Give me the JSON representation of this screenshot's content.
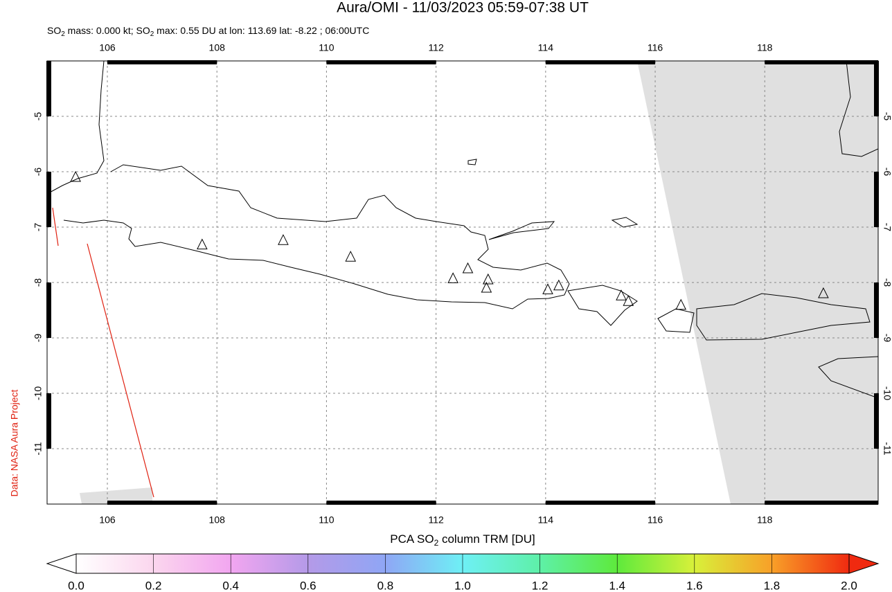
{
  "title": "Aura/OMI - 11/03/2023 05:59-07:38 UT",
  "subtitle": [
    "SO",
    "2",
    " mass: 0.000 kt; SO",
    "2",
    " max: 0.55 DU at lon: 113.69 lat: -8.22 ; 06:00UTC"
  ],
  "credit": "Data: NASA Aura Project",
  "map": {
    "xlim": [
      104.9,
      120.07
    ],
    "ylim": [
      -12,
      -4
    ],
    "xticks": [
      106,
      108,
      110,
      112,
      114,
      116,
      118
    ],
    "yticks": [
      -5,
      -6,
      -7,
      -8,
      -9,
      -10,
      -11
    ],
    "grid": true,
    "volcanoes": {
      "lon": [
        105.42,
        107.73,
        109.21,
        110.44,
        112.31,
        112.58,
        112.95,
        112.92,
        114.04,
        114.24,
        115.38,
        115.51,
        116.47,
        119.07
      ],
      "lat": [
        -6.1,
        -7.32,
        -7.24,
        -7.54,
        -7.93,
        -7.75,
        -7.95,
        -8.1,
        -8.13,
        -8.06,
        -8.24,
        -8.34,
        -8.41,
        -8.2
      ]
    }
  },
  "colorbar": {
    "label": [
      "PCA SO",
      "2",
      " column TRM [DU]"
    ],
    "lim": [
      0,
      2
    ],
    "ticks": [
      {
        "value": 0,
        "label": "0.0"
      },
      {
        "value": 0.2,
        "label": "0.2"
      },
      {
        "value": 0.4,
        "label": "0.4"
      },
      {
        "value": 0.6,
        "label": "0.6"
      },
      {
        "value": 0.8,
        "label": "0.8"
      },
      {
        "value": 1,
        "label": "1.0"
      },
      {
        "value": 1.2,
        "label": "1.2"
      },
      {
        "value": 1.4,
        "label": "1.4"
      },
      {
        "value": 1.6,
        "label": "1.6"
      },
      {
        "value": 1.8,
        "label": "1.8"
      },
      {
        "value": 2,
        "label": "2.0"
      }
    ]
  }
}
